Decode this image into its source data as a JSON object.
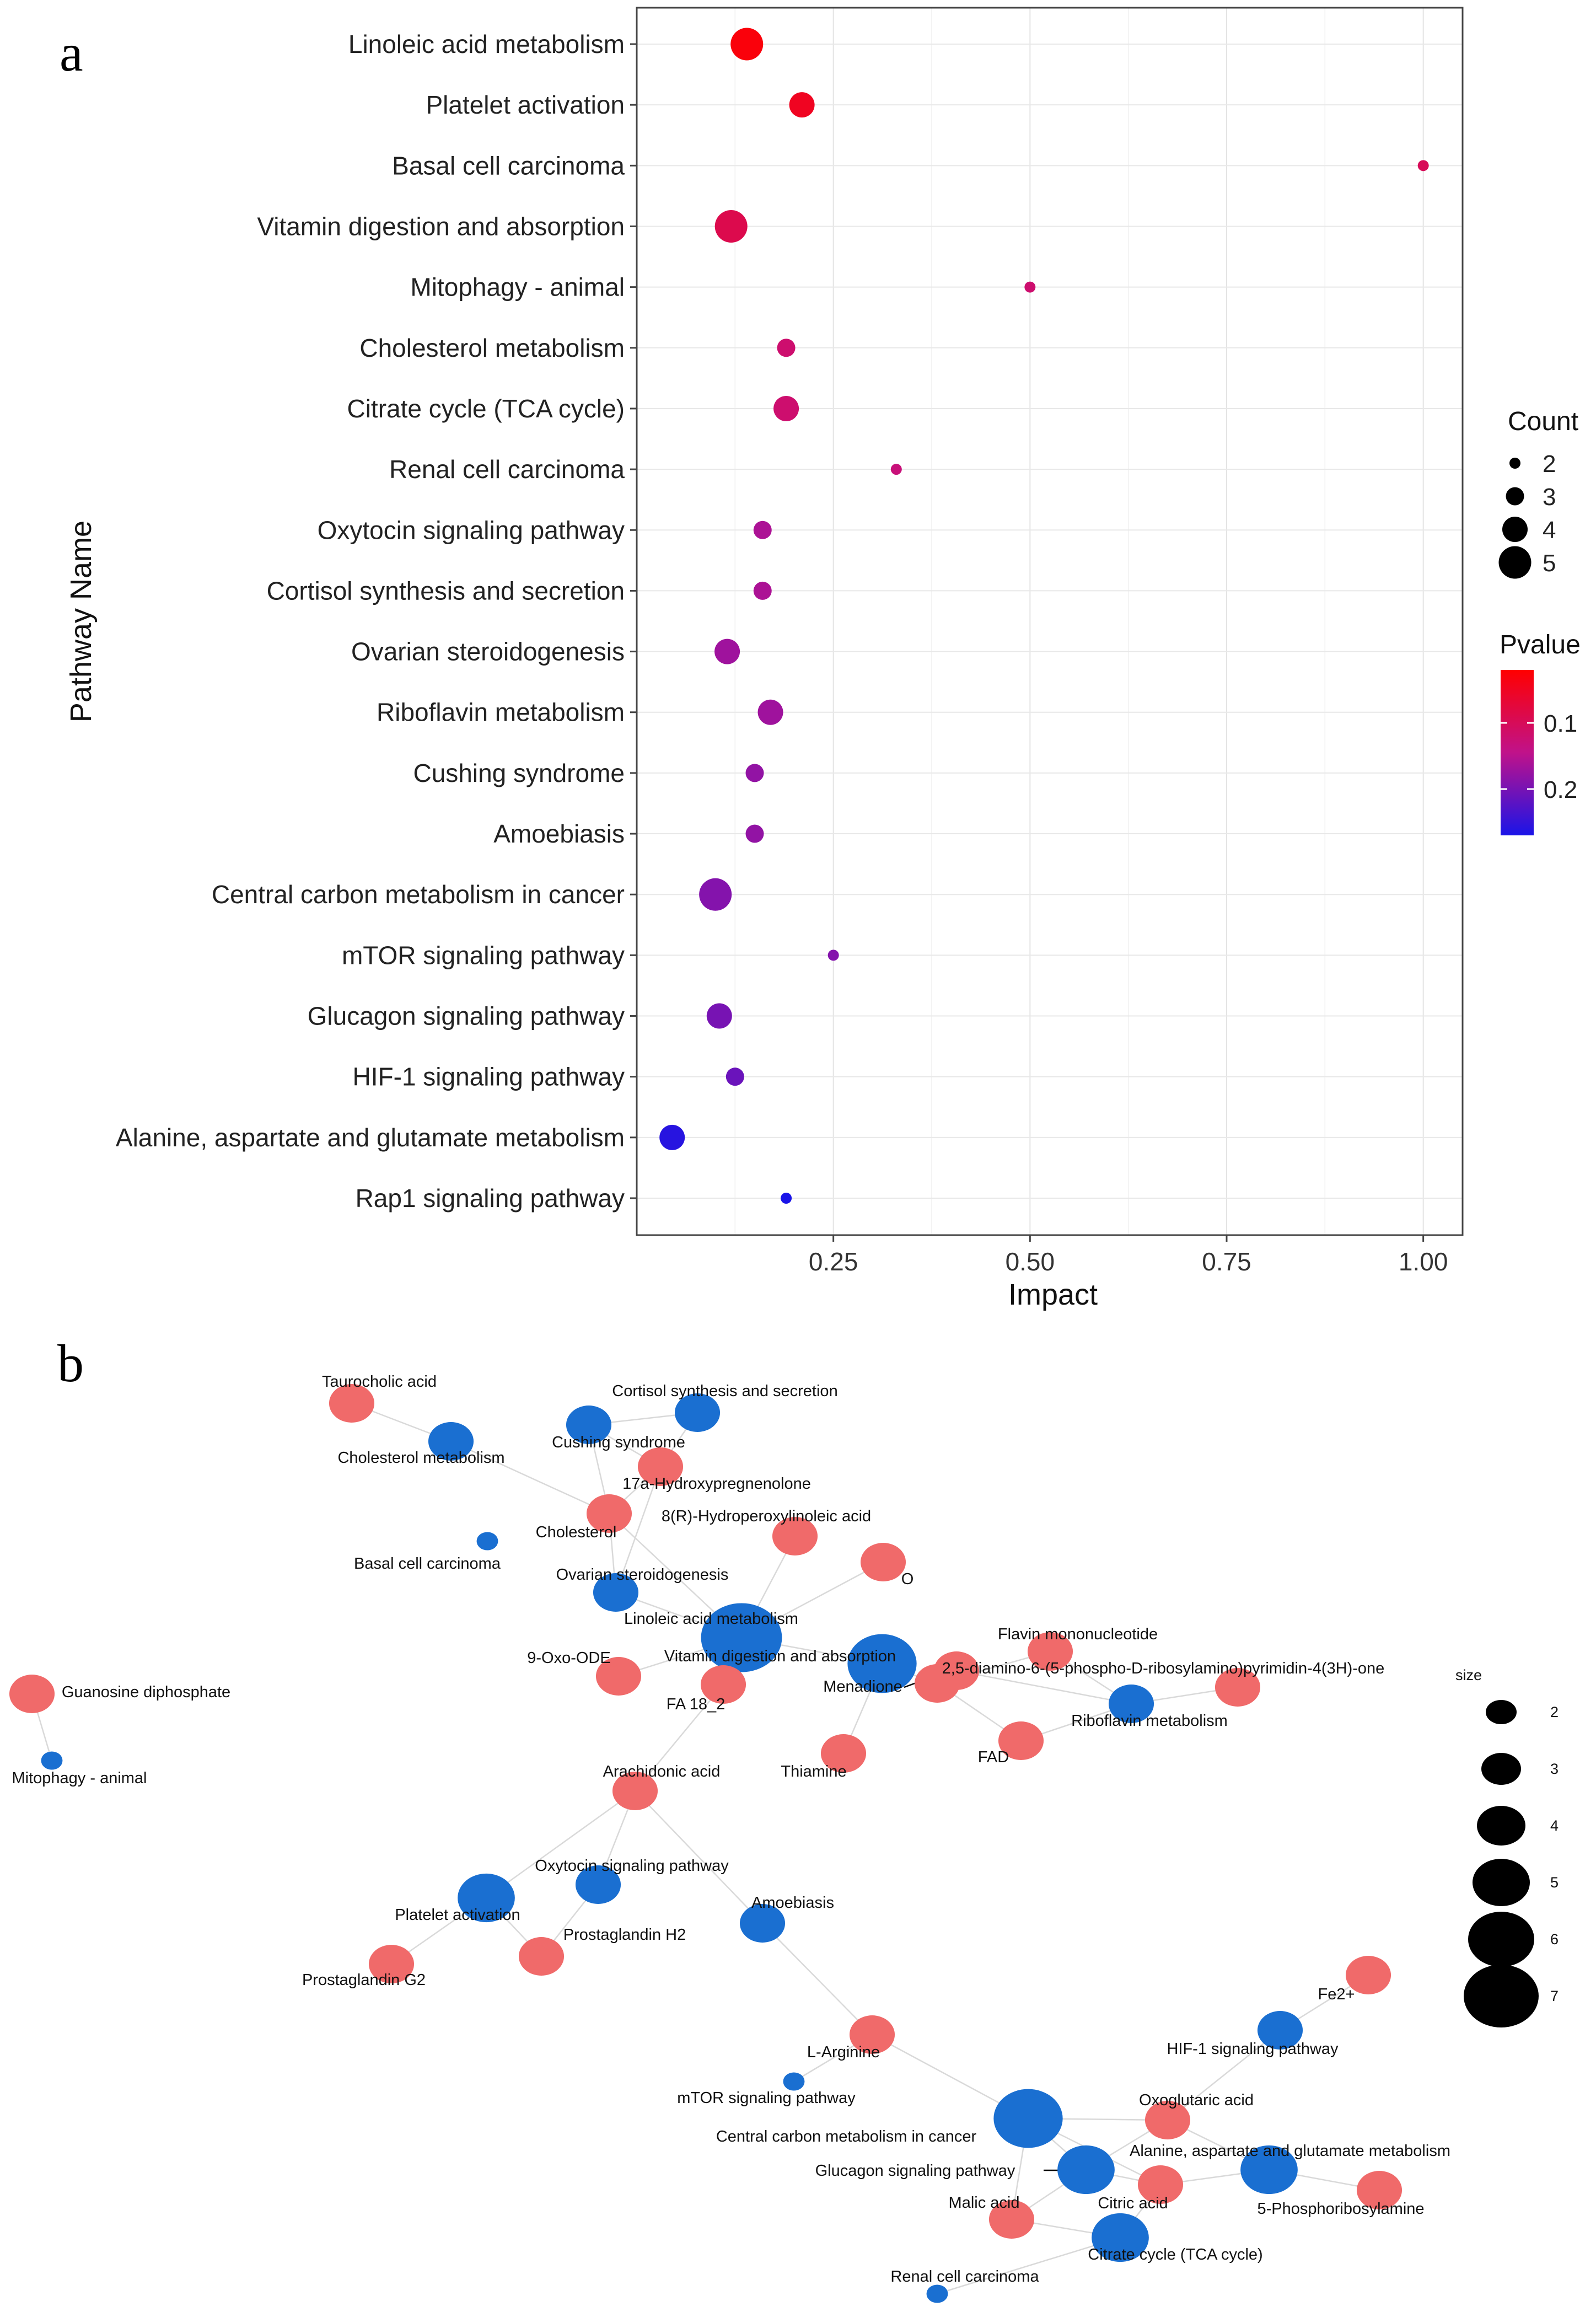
{
  "panel_a_label": "a",
  "panel_b_label": "b",
  "chart_data": [
    {
      "type": "scatter",
      "title": "",
      "xlabel": "Impact",
      "ylabel": "Pathway Name",
      "xlim": [
        0,
        1.05
      ],
      "xticks": [
        0.25,
        0.5,
        0.75,
        1.0
      ],
      "xtick_labels": [
        "0.25",
        "0.50",
        "0.75",
        "1.00"
      ],
      "grid": true,
      "categories": [
        "Linoleic acid metabolism",
        "Platelet activation",
        "Basal cell carcinoma",
        "Vitamin digestion and absorption",
        "Mitophagy - animal",
        "Cholesterol metabolism",
        "Citrate cycle (TCA cycle)",
        "Renal cell carcinoma",
        "Oxytocin signaling pathway",
        "Cortisol synthesis and secretion",
        "Ovarian steroidogenesis",
        "Riboflavin metabolism",
        "Cushing syndrome",
        "Amoebiasis",
        "Central carbon metabolism in cancer",
        "mTOR signaling pathway",
        "Glucagon signaling pathway",
        "HIF-1 signaling pathway",
        "Alanine, aspartate and glutamate metabolism",
        "Rap1 signaling pathway"
      ],
      "impact": [
        0.14,
        0.21,
        1.0,
        0.12,
        0.5,
        0.19,
        0.19,
        0.33,
        0.16,
        0.16,
        0.115,
        0.17,
        0.15,
        0.15,
        0.1,
        0.25,
        0.105,
        0.125,
        0.045,
        0.19
      ],
      "count": [
        5,
        4,
        2,
        5,
        2,
        3,
        4,
        2,
        3,
        3,
        4,
        4,
        3,
        3,
        5,
        2,
        4,
        3,
        4,
        2
      ],
      "pvalue": [
        0.03,
        0.05,
        0.1,
        0.09,
        0.12,
        0.12,
        0.12,
        0.13,
        0.16,
        0.16,
        0.17,
        0.17,
        0.18,
        0.18,
        0.19,
        0.19,
        0.2,
        0.21,
        0.26,
        0.28
      ],
      "legend_count": {
        "title": "Count",
        "values": [
          2,
          3,
          4,
          5
        ]
      },
      "legend_pvalue": {
        "title": "Pvalue",
        "ticks": [
          0.1,
          0.2
        ],
        "tick_labels": [
          "0.1",
          "0.2"
        ],
        "range": [
          0.02,
          0.27
        ],
        "low_color": "#ff0000",
        "mid_color": "#c0128a",
        "high_color": "#1a14e8"
      }
    },
    {
      "type": "network",
      "pathway_color": "#1a6fd1",
      "metabolite_color": "#f06a6a",
      "legend_title": "size",
      "legend_sizes": [
        2,
        3,
        4,
        5,
        6,
        7
      ],
      "nodes": [
        {
          "id": "taurocholic",
          "label": "Taurocholic acid",
          "kind": "metabolite",
          "size": 4
        },
        {
          "id": "cortisol",
          "label": "Cortisol synthesis and secretion",
          "kind": "pathway",
          "size": 4
        },
        {
          "id": "cushing",
          "label": "Cushing syndrome",
          "kind": "pathway",
          "size": 4
        },
        {
          "id": "cholmet",
          "label": "Cholesterol metabolism",
          "kind": "pathway",
          "size": 4
        },
        {
          "id": "hydroxypreg",
          "label": "17a-Hydroxypregnenolone",
          "kind": "metabolite",
          "size": 4
        },
        {
          "id": "hpode",
          "label": "8(R)-Hydroperoxylinoleic acid",
          "kind": "metabolite",
          "size": 4
        },
        {
          "id": "cholesterol",
          "label": "Cholesterol",
          "kind": "metabolite",
          "size": 4
        },
        {
          "id": "basal",
          "label": "Basal cell carcinoma",
          "kind": "pathway",
          "size": 2
        },
        {
          "id": "o2",
          "label": "O",
          "kind": "metabolite",
          "size": 4
        },
        {
          "id": "ovarian",
          "label": "Ovarian steroidogenesis",
          "kind": "pathway",
          "size": 4
        },
        {
          "id": "linoleic",
          "label": "Linoleic acid metabolism",
          "kind": "pathway",
          "size": 7
        },
        {
          "id": "vitamin",
          "label": "Vitamin digestion and absorption",
          "kind": "pathway",
          "size": 6
        },
        {
          "id": "fmn",
          "label": "Flavin mononucleotide",
          "kind": "metabolite",
          "size": 4
        },
        {
          "id": "diamino",
          "label": "2,5-diamino-6-(5-phospho-D-ribosylamino)pyrimidin-4(3H)-one",
          "kind": "metabolite",
          "size": 4
        },
        {
          "id": "menadione",
          "label": "Menadione",
          "kind": "metabolite",
          "size": 4
        },
        {
          "id": "oxoode",
          "label": "9-Oxo-ODE",
          "kind": "metabolite",
          "size": 4
        },
        {
          "id": "fa18",
          "label": "FA 18_2",
          "kind": "metabolite",
          "size": 4
        },
        {
          "id": "guanosine",
          "label": "Guanosine diphosphate",
          "kind": "metabolite",
          "size": 4
        },
        {
          "id": "riboflavin",
          "label": "Riboflavin metabolism",
          "kind": "pathway",
          "size": 4
        },
        {
          "id": "riboext",
          "label": "",
          "kind": "metabolite",
          "size": 4
        },
        {
          "id": "fad",
          "label": "FAD",
          "kind": "metabolite",
          "size": 4
        },
        {
          "id": "thiamine",
          "label": "Thiamine",
          "kind": "metabolite",
          "size": 4
        },
        {
          "id": "mitophagy",
          "label": "Mitophagy - animal",
          "kind": "pathway",
          "size": 2
        },
        {
          "id": "arachidonic",
          "label": "Arachidonic acid",
          "kind": "metabolite",
          "size": 4
        },
        {
          "id": "oxytocin",
          "label": "Oxytocin signaling pathway",
          "kind": "pathway",
          "size": 4
        },
        {
          "id": "platelet",
          "label": "Platelet activation",
          "kind": "pathway",
          "size": 5
        },
        {
          "id": "amoebiasis",
          "label": "Amoebiasis",
          "kind": "pathway",
          "size": 4
        },
        {
          "id": "pgh2",
          "label": "Prostaglandin H2",
          "kind": "metabolite",
          "size": 4
        },
        {
          "id": "pgg2",
          "label": "Prostaglandin G2",
          "kind": "metabolite",
          "size": 4
        },
        {
          "id": "fe2",
          "label": "Fe2+",
          "kind": "metabolite",
          "size": 4
        },
        {
          "id": "hif1",
          "label": "HIF-1 signaling pathway",
          "kind": "pathway",
          "size": 4
        },
        {
          "id": "arginine",
          "label": "L-Arginine",
          "kind": "metabolite",
          "size": 4
        },
        {
          "id": "mtor",
          "label": "mTOR signaling pathway",
          "kind": "pathway",
          "size": 2
        },
        {
          "id": "oxoglutaric",
          "label": "Oxoglutaric acid",
          "kind": "metabolite",
          "size": 4
        },
        {
          "id": "centralcarbon",
          "label": "Central carbon metabolism in cancer",
          "kind": "pathway",
          "size": 6
        },
        {
          "id": "alanine",
          "label": "Alanine, aspartate and glutamate metabolism",
          "kind": "pathway",
          "size": 5
        },
        {
          "id": "glucagon",
          "label": "Glucagon signaling pathway",
          "kind": "pathway",
          "size": 5
        },
        {
          "id": "citric",
          "label": "Citric acid",
          "kind": "metabolite",
          "size": 4
        },
        {
          "id": "phosphoribosyl",
          "label": "5-Phosphoribosylamine",
          "kind": "metabolite",
          "size": 4
        },
        {
          "id": "malic",
          "label": "Malic acid",
          "kind": "metabolite",
          "size": 4
        },
        {
          "id": "citrate",
          "label": "Citrate cycle (TCA cycle)",
          "kind": "pathway",
          "size": 5
        },
        {
          "id": "renal",
          "label": "Renal cell carcinoma",
          "kind": "pathway",
          "size": 2
        }
      ],
      "edges": [
        [
          "taurocholic",
          "cholmet"
        ],
        [
          "cushing",
          "cortisol"
        ],
        [
          "cushing",
          "hydroxypreg"
        ],
        [
          "cushing",
          "cholesterol"
        ],
        [
          "cortisol",
          "hydroxypreg"
        ],
        [
          "cholmet",
          "cholesterol"
        ],
        [
          "hydroxypreg",
          "cholesterol"
        ],
        [
          "hydroxypreg",
          "ovarian"
        ],
        [
          "cholesterol",
          "ovarian"
        ],
        [
          "cholesterol",
          "linoleic"
        ],
        [
          "hpode",
          "linoleic"
        ],
        [
          "o2",
          "linoleic"
        ],
        [
          "ovarian",
          "linoleic"
        ],
        [
          "linoleic",
          "oxoode"
        ],
        [
          "linoleic",
          "fa18"
        ],
        [
          "linoleic",
          "vitamin"
        ],
        [
          "vitamin",
          "menadione"
        ],
        [
          "vitamin",
          "thiamine"
        ],
        [
          "fa18",
          "arachidonic"
        ],
        [
          "menadione",
          "fmn"
        ],
        [
          "menadione",
          "diamino"
        ],
        [
          "menadione",
          "fad"
        ],
        [
          "fmn",
          "riboflavin"
        ],
        [
          "diamino",
          "riboflavin"
        ],
        [
          "riboext",
          "riboflavin"
        ],
        [
          "fad",
          "riboflavin"
        ],
        [
          "guanosine",
          "mitophagy"
        ],
        [
          "arachidonic",
          "oxytocin"
        ],
        [
          "arachidonic",
          "amoebiasis"
        ],
        [
          "arachidonic",
          "platelet"
        ],
        [
          "oxytocin",
          "pgh2"
        ],
        [
          "platelet",
          "pgh2"
        ],
        [
          "platelet",
          "pgg2"
        ],
        [
          "amoebiasis",
          "arginine"
        ],
        [
          "arginine",
          "centralcarbon"
        ],
        [
          "arginine",
          "mtor"
        ],
        [
          "fe2",
          "hif1"
        ],
        [
          "hif1",
          "oxoglutaric"
        ],
        [
          "centralcarbon",
          "oxoglutaric"
        ],
        [
          "centralcarbon",
          "glucagon"
        ],
        [
          "centralcarbon",
          "citric"
        ],
        [
          "centralcarbon",
          "malic"
        ],
        [
          "oxoglutaric",
          "alanine"
        ],
        [
          "oxoglutaric",
          "glucagon"
        ],
        [
          "glucagon",
          "citric"
        ],
        [
          "glucagon",
          "malic"
        ],
        [
          "citric",
          "alanine"
        ],
        [
          "citric",
          "citrate"
        ],
        [
          "malic",
          "citrate"
        ],
        [
          "alanine",
          "phosphoribosyl"
        ],
        [
          "citrate",
          "renal"
        ]
      ]
    }
  ]
}
